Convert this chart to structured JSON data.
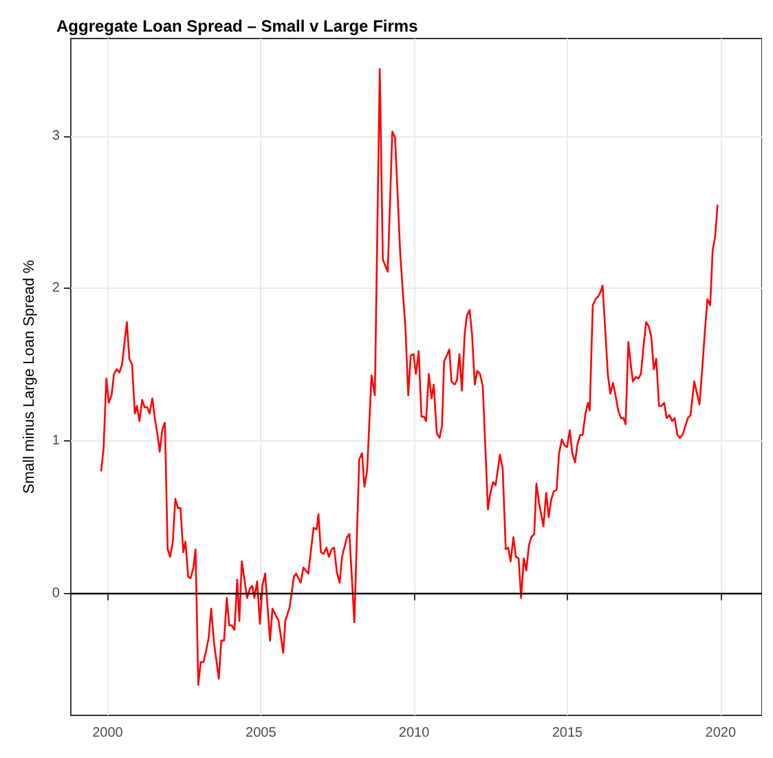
{
  "chart_data": {
    "type": "line",
    "title": "Aggregate Loan Spread – Small v Large Firms",
    "ylabel": "Small minus Large Loan Spread %",
    "x": [
      1999.79,
      1999.87,
      1999.96,
      2000.04,
      2000.13,
      2000.21,
      2000.3,
      2000.39,
      2000.47,
      2000.63,
      2000.71,
      2000.8,
      2000.89,
      2000.96,
      2001.04,
      2001.13,
      2001.21,
      2001.3,
      2001.37,
      2001.46,
      2001.54,
      2001.63,
      2001.7,
      2001.79,
      2001.87,
      2001.96,
      2002.04,
      2002.13,
      2002.21,
      2002.3,
      2002.38,
      2002.47,
      2002.54,
      2002.63,
      2002.71,
      2002.8,
      2002.87,
      2002.96,
      2003.04,
      2003.13,
      2003.21,
      2003.3,
      2003.38,
      2003.47,
      2003.63,
      2003.71,
      2003.8,
      2003.89,
      2003.97,
      2004.05,
      2004.14,
      2004.23,
      2004.3,
      2004.38,
      2004.55,
      2004.64,
      2004.72,
      2004.79,
      2004.88,
      2004.97,
      2005.05,
      2005.14,
      2005.3,
      2005.38,
      2005.58,
      2005.73,
      2005.8,
      2005.94,
      2006.08,
      2006.15,
      2006.3,
      2006.39,
      2006.55,
      2006.72,
      2006.82,
      2006.88,
      2006.96,
      2007.05,
      2007.14,
      2007.22,
      2007.31,
      2007.39,
      2007.48,
      2007.57,
      2007.65,
      2007.81,
      2007.89,
      2008.05,
      2008.21,
      2008.3,
      2008.38,
      2008.47,
      2008.61,
      2008.72,
      2008.88,
      2008.98,
      2009.14,
      2009.29,
      2009.38,
      2009.55,
      2009.72,
      2009.81,
      2009.89,
      2009.98,
      2010.06,
      2010.15,
      2010.24,
      2010.32,
      2010.39,
      2010.48,
      2010.57,
      2010.64,
      2010.74,
      2010.83,
      2010.91,
      2010.98,
      2011.15,
      2011.22,
      2011.32,
      2011.4,
      2011.48,
      2011.56,
      2011.65,
      2011.72,
      2011.81,
      2011.89,
      2011.98,
      2012.06,
      2012.15,
      2012.24,
      2012.41,
      2012.49,
      2012.58,
      2012.66,
      2012.8,
      2012.89,
      2012.99,
      2013.07,
      2013.15,
      2013.24,
      2013.32,
      2013.41,
      2013.49,
      2013.58,
      2013.66,
      2013.75,
      2013.83,
      2013.92,
      2013.99,
      2014.08,
      2014.22,
      2014.31,
      2014.39,
      2014.48,
      2014.56,
      2014.65,
      2014.73,
      2014.82,
      2014.91,
      2014.99,
      2015.08,
      2015.16,
      2015.25,
      2015.33,
      2015.42,
      2015.5,
      2015.59,
      2015.67,
      2015.73,
      2015.83,
      2015.92,
      2016.01,
      2016.09,
      2016.15,
      2016.32,
      2016.4,
      2016.49,
      2016.57,
      2016.66,
      2016.75,
      2016.83,
      2016.9,
      2016.99,
      2017.07,
      2017.14,
      2017.23,
      2017.32,
      2017.4,
      2017.49,
      2017.57,
      2017.66,
      2017.74,
      2017.82,
      2017.9,
      2017.99,
      2018.07,
      2018.16,
      2018.24,
      2018.33,
      2018.42,
      2018.5,
      2018.59,
      2018.67,
      2018.76,
      2018.84,
      2018.93,
      2019.02,
      2019.14,
      2019.23,
      2019.31,
      2019.4,
      2019.49,
      2019.57,
      2019.66,
      2019.74,
      2019.82,
      2019.9
    ],
    "series": [
      {
        "color": "#ff0000",
        "values": [
          0.8,
          0.95,
          1.41,
          1.25,
          1.3,
          1.44,
          1.47,
          1.45,
          1.5,
          1.78,
          1.54,
          1.5,
          1.18,
          1.23,
          1.13,
          1.27,
          1.22,
          1.22,
          1.18,
          1.28,
          1.15,
          1.04,
          0.93,
          1.08,
          1.12,
          0.29,
          0.24,
          0.34,
          0.62,
          0.56,
          0.56,
          0.27,
          0.34,
          0.11,
          0.1,
          0.17,
          0.29,
          -0.6,
          -0.45,
          -0.45,
          -0.38,
          -0.29,
          -0.1,
          -0.32,
          -0.56,
          -0.31,
          -0.31,
          -0.03,
          -0.21,
          -0.21,
          -0.24,
          0.09,
          -0.18,
          0.21,
          -0.03,
          0.03,
          0.05,
          -0.03,
          0.08,
          -0.2,
          0.05,
          0.13,
          -0.31,
          -0.1,
          -0.18,
          -0.39,
          -0.18,
          -0.09,
          0.11,
          0.13,
          0.07,
          0.17,
          0.13,
          0.43,
          0.42,
          0.52,
          0.27,
          0.26,
          0.3,
          0.24,
          0.29,
          0.3,
          0.14,
          0.07,
          0.24,
          0.37,
          0.39,
          -0.19,
          0.88,
          0.92,
          0.7,
          0.81,
          1.43,
          1.3,
          3.44,
          2.19,
          2.11,
          3.03,
          2.99,
          2.22,
          1.73,
          1.3,
          1.56,
          1.57,
          1.44,
          1.59,
          1.16,
          1.16,
          1.13,
          1.44,
          1.28,
          1.37,
          1.05,
          1.02,
          1.1,
          1.52,
          1.6,
          1.39,
          1.37,
          1.4,
          1.57,
          1.33,
          1.7,
          1.82,
          1.86,
          1.7,
          1.37,
          1.46,
          1.44,
          1.36,
          0.55,
          0.66,
          0.73,
          0.71,
          0.91,
          0.82,
          0.29,
          0.3,
          0.21,
          0.37,
          0.24,
          0.23,
          -0.03,
          0.23,
          0.15,
          0.32,
          0.37,
          0.39,
          0.72,
          0.59,
          0.44,
          0.66,
          0.5,
          0.62,
          0.67,
          0.68,
          0.92,
          1.01,
          0.97,
          0.96,
          1.07,
          0.92,
          0.86,
          0.98,
          1.04,
          1.04,
          1.18,
          1.25,
          1.2,
          1.89,
          1.93,
          1.95,
          1.98,
          2.02,
          1.44,
          1.31,
          1.38,
          1.3,
          1.2,
          1.15,
          1.15,
          1.11,
          1.65,
          1.5,
          1.39,
          1.42,
          1.41,
          1.44,
          1.63,
          1.78,
          1.75,
          1.68,
          1.47,
          1.54,
          1.23,
          1.23,
          1.25,
          1.15,
          1.17,
          1.13,
          1.15,
          1.04,
          1.02,
          1.04,
          1.09,
          1.15,
          1.17,
          1.39,
          1.31,
          1.24,
          1.47,
          1.73,
          1.93,
          1.89,
          2.25,
          2.34,
          2.55
        ]
      }
    ],
    "xlim": [
      1998.8,
      2021.35
    ],
    "ylim": [
      -0.8,
      3.64
    ],
    "xticks": [
      2000,
      2005,
      2010,
      2015,
      2020
    ],
    "yticks": [
      0,
      1,
      2,
      3
    ],
    "ref_lines": [
      {
        "axis": "y",
        "value": 0,
        "color": "#000000"
      }
    ],
    "grid": true
  }
}
